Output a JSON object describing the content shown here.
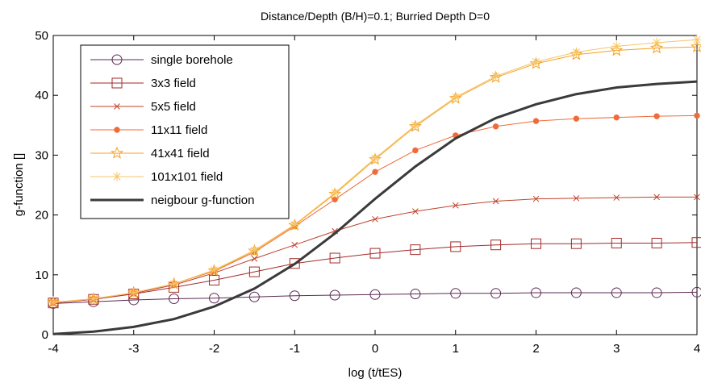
{
  "chart_data": {
    "type": "line",
    "title": "Distance/Depth (B/H)=0.1; Burried Depth D=0",
    "xlabel": "log (t/tES)",
    "ylabel": "g-function []",
    "xlim": [
      -4,
      4
    ],
    "ylim": [
      0,
      50
    ],
    "xticks": [
      "-4",
      "-3",
      "-2",
      "-1",
      "0",
      "1",
      "2",
      "3",
      "4"
    ],
    "yticks": [
      "0",
      "10",
      "20",
      "30",
      "40",
      "50"
    ],
    "grid": false,
    "legend_position": "top-left",
    "x": [
      -4,
      -3.5,
      -3,
      -2.5,
      -2,
      -1.5,
      -1,
      -0.5,
      0,
      0.5,
      1,
      1.5,
      2,
      2.5,
      3,
      3.5,
      4
    ],
    "series": [
      {
        "name": "single borehole",
        "color": "#5b2a52",
        "marker": "circle",
        "values": [
          5.2,
          5.5,
          5.8,
          6.0,
          6.1,
          6.3,
          6.5,
          6.6,
          6.7,
          6.8,
          6.9,
          6.9,
          7.0,
          7.0,
          7.0,
          7.0,
          7.1
        ]
      },
      {
        "name": "3x3 field",
        "color": "#a32a2a",
        "marker": "square",
        "values": [
          5.3,
          5.9,
          6.8,
          7.9,
          9.1,
          10.5,
          11.9,
          12.8,
          13.6,
          14.2,
          14.7,
          15.0,
          15.2,
          15.2,
          15.3,
          15.3,
          15.4
        ]
      },
      {
        "name": "5x5 field",
        "color": "#c0422a",
        "marker": "x",
        "values": [
          5.3,
          5.9,
          6.9,
          8.3,
          10.3,
          12.7,
          15.0,
          17.3,
          19.3,
          20.6,
          21.6,
          22.3,
          22.7,
          22.8,
          22.9,
          23.0,
          23.0
        ]
      },
      {
        "name": "11x11 field",
        "color": "#f06a3a",
        "marker": "dot",
        "values": [
          5.3,
          6.0,
          7.0,
          8.5,
          10.6,
          13.8,
          18.1,
          22.6,
          27.2,
          30.8,
          33.3,
          34.8,
          35.7,
          36.1,
          36.3,
          36.5,
          36.6
        ]
      },
      {
        "name": "41x41 field",
        "color": "#f5a020",
        "marker": "star",
        "values": [
          5.4,
          6.0,
          7.0,
          8.5,
          10.7,
          14.0,
          18.3,
          23.5,
          29.3,
          34.8,
          39.5,
          43.0,
          45.3,
          46.8,
          47.5,
          47.9,
          48.1
        ]
      },
      {
        "name": "101x101 field",
        "color": "#f5c568",
        "marker": "asterisk",
        "values": [
          5.4,
          6.0,
          7.0,
          8.5,
          10.8,
          14.1,
          18.4,
          23.7,
          29.5,
          35.0,
          39.7,
          43.2,
          45.6,
          47.2,
          48.2,
          48.8,
          49.3
        ]
      },
      {
        "name": "neigbour g-function",
        "color": "#3a3a3a",
        "marker": "none",
        "linewidth": 3,
        "values": [
          0.1,
          0.5,
          1.3,
          2.6,
          4.7,
          7.7,
          11.8,
          16.9,
          22.7,
          28.1,
          32.8,
          36.2,
          38.5,
          40.2,
          41.3,
          41.9,
          42.3
        ]
      }
    ]
  }
}
